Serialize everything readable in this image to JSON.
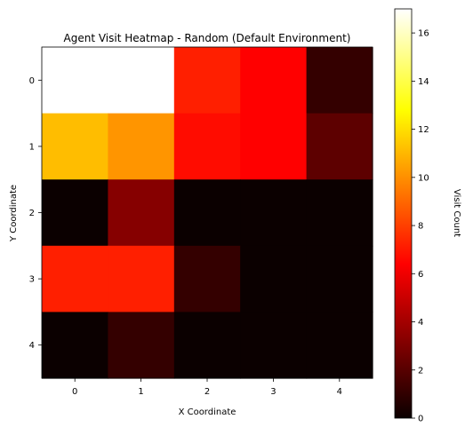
{
  "chart_data": {
    "type": "heatmap",
    "title": "Agent Visit Heatmap - Random (Default Environment)",
    "xlabel": "X Coordinate",
    "ylabel": "Y Coordinate",
    "x_categories": [
      "0",
      "1",
      "2",
      "3",
      "4"
    ],
    "y_categories": [
      "0",
      "1",
      "2",
      "3",
      "4"
    ],
    "values": [
      [
        17,
        17,
        7,
        6,
        1
      ],
      [
        11,
        10,
        6.5,
        6,
        2
      ],
      [
        0,
        3,
        0,
        0,
        0
      ],
      [
        7,
        7,
        1,
        0,
        0
      ],
      [
        0,
        1,
        0,
        0,
        0
      ]
    ],
    "colorscale": "hot",
    "colorbar": {
      "label": "Visit Count",
      "range": [
        0,
        17
      ],
      "ticks": [
        "0",
        "2",
        "4",
        "6",
        "8",
        "10",
        "12",
        "14",
        "16"
      ]
    }
  }
}
